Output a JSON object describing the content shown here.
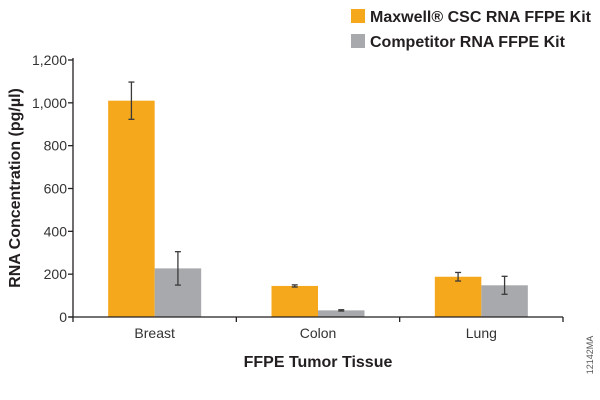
{
  "chart_data": {
    "type": "bar",
    "title": "",
    "xlabel": "FFPE Tumor Tissue",
    "ylabel": "RNA Concentration (pg/µl)",
    "categories": [
      "Breast",
      "Colon",
      "Lung"
    ],
    "ylim": [
      0,
      1200
    ],
    "yticks": [
      0,
      200,
      400,
      600,
      800,
      1000,
      1200
    ],
    "ytick_labels": [
      "0",
      "200",
      "400",
      "600",
      "800",
      "1,000",
      "1,200"
    ],
    "grid": false,
    "legend_placement": "top-right",
    "series": [
      {
        "name": "Maxwell® CSC RNA FFPE Kit",
        "color": "#f5a81c",
        "values": [
          1010,
          145,
          188
        ],
        "errors": [
          87,
          5,
          20
        ]
      },
      {
        "name": "Competitor RNA FFPE Kit",
        "color": "#a7a9ac",
        "values": [
          227,
          31,
          148
        ],
        "errors": [
          78,
          3,
          42
        ]
      }
    ],
    "figure_code": "12142MA"
  }
}
